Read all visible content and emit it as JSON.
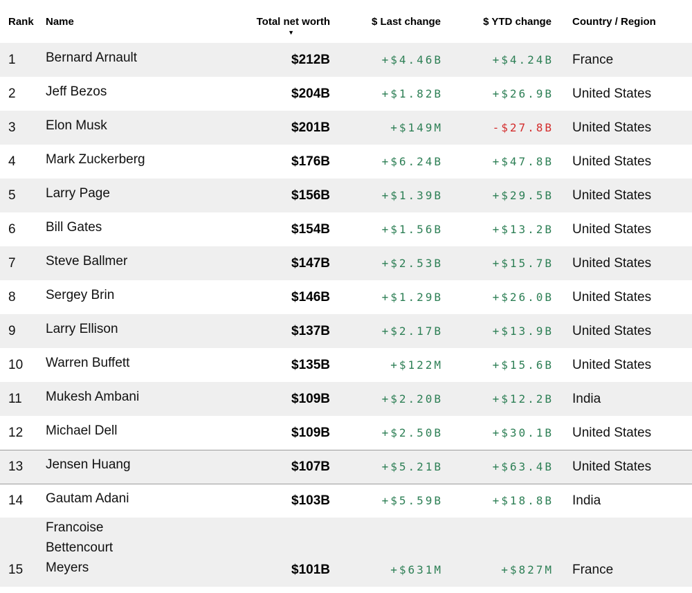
{
  "table": {
    "sort_icon": "▼",
    "sorted_column": "Total net worth",
    "sort_direction": "descending",
    "columns": [
      {
        "key": "rank",
        "label": "Rank"
      },
      {
        "key": "name",
        "label": "Name"
      },
      {
        "key": "net_worth",
        "label": "Total net worth"
      },
      {
        "key": "last_change",
        "label": "$ Last change"
      },
      {
        "key": "ytd_change",
        "label": "$ YTD change"
      },
      {
        "key": "country",
        "label": "Country / Region"
      }
    ],
    "rows": [
      {
        "rank": "1",
        "name": "Bernard Arnault",
        "net_worth": "$212B",
        "last_change": "+$4.46B",
        "ytd_change": "+$4.24B",
        "country": "France",
        "highlighted": false
      },
      {
        "rank": "2",
        "name": "Jeff Bezos",
        "net_worth": "$204B",
        "last_change": "+$1.82B",
        "ytd_change": "+$26.9B",
        "country": "United States",
        "highlighted": false
      },
      {
        "rank": "3",
        "name": "Elon Musk",
        "net_worth": "$201B",
        "last_change": "+$149M",
        "ytd_change": "-$27.8B",
        "country": "United States",
        "highlighted": false
      },
      {
        "rank": "4",
        "name": "Mark Zuckerberg",
        "net_worth": "$176B",
        "last_change": "+$6.24B",
        "ytd_change": "+$47.8B",
        "country": "United States",
        "highlighted": false
      },
      {
        "rank": "5",
        "name": "Larry Page",
        "net_worth": "$156B",
        "last_change": "+$1.39B",
        "ytd_change": "+$29.5B",
        "country": "United States",
        "highlighted": false
      },
      {
        "rank": "6",
        "name": "Bill Gates",
        "net_worth": "$154B",
        "last_change": "+$1.56B",
        "ytd_change": "+$13.2B",
        "country": "United States",
        "highlighted": false
      },
      {
        "rank": "7",
        "name": "Steve Ballmer",
        "net_worth": "$147B",
        "last_change": "+$2.53B",
        "ytd_change": "+$15.7B",
        "country": "United States",
        "highlighted": false
      },
      {
        "rank": "8",
        "name": "Sergey Brin",
        "net_worth": "$146B",
        "last_change": "+$1.29B",
        "ytd_change": "+$26.0B",
        "country": "United States",
        "highlighted": false
      },
      {
        "rank": "9",
        "name": "Larry Ellison",
        "net_worth": "$137B",
        "last_change": "+$2.17B",
        "ytd_change": "+$13.9B",
        "country": "United States",
        "highlighted": false
      },
      {
        "rank": "10",
        "name": "Warren Buffett",
        "net_worth": "$135B",
        "last_change": "+$122M",
        "ytd_change": "+$15.6B",
        "country": "United States",
        "highlighted": false
      },
      {
        "rank": "11",
        "name": "Mukesh Ambani",
        "net_worth": "$109B",
        "last_change": "+$2.20B",
        "ytd_change": "+$12.2B",
        "country": "India",
        "highlighted": false
      },
      {
        "rank": "12",
        "name": "Michael Dell",
        "net_worth": "$109B",
        "last_change": "+$2.50B",
        "ytd_change": "+$30.1B",
        "country": "United States",
        "highlighted": false
      },
      {
        "rank": "13",
        "name": "Jensen Huang",
        "net_worth": "$107B",
        "last_change": "+$5.21B",
        "ytd_change": "+$63.4B",
        "country": "United States",
        "highlighted": true
      },
      {
        "rank": "14",
        "name": "Gautam Adani",
        "net_worth": "$103B",
        "last_change": "+$5.59B",
        "ytd_change": "+$18.8B",
        "country": "India",
        "highlighted": false
      },
      {
        "rank": "15",
        "name": "Francoise\nBettencourt\nMeyers",
        "net_worth": "$101B",
        "last_change": "+$631M",
        "ytd_change": "+$827M",
        "country": "France",
        "highlighted": false
      }
    ]
  },
  "colors": {
    "positive_change": "#2d7f55",
    "negative_change": "#d32c2c",
    "row_stripe": "#efefef",
    "highlight_border": "#9c9c9c",
    "text": "#000000"
  }
}
